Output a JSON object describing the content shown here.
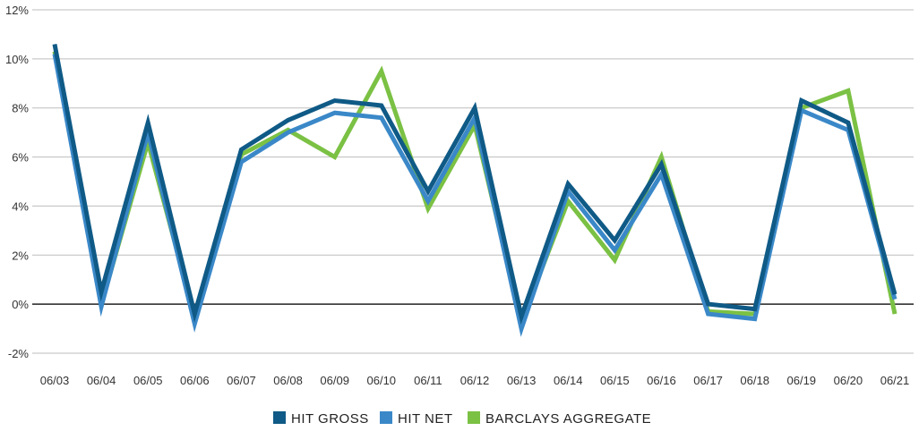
{
  "chart_data": {
    "type": "line",
    "title": "",
    "xlabel": "",
    "ylabel": "",
    "categories": [
      "06/03",
      "06/04",
      "06/05",
      "06/06",
      "06/07",
      "06/08",
      "06/09",
      "06/10",
      "06/11",
      "06/12",
      "06/13",
      "06/14",
      "06/15",
      "06/16",
      "06/17",
      "06/18",
      "06/19",
      "06/20",
      "06/21"
    ],
    "y_ticks": [
      "-2%",
      "0%",
      "2%",
      "4%",
      "6%",
      "8%",
      "10%",
      "12%"
    ],
    "ylim": [
      -2,
      12
    ],
    "grid": true,
    "legend_position": "bottom-center",
    "series": [
      {
        "name": "BARCLAYS AGGREGATE",
        "color": "#7bc144",
        "values": [
          10.3,
          0.0,
          6.6,
          -0.5,
          6.1,
          7.1,
          6.0,
          9.5,
          3.9,
          7.3,
          -0.7,
          4.2,
          1.8,
          6.0,
          -0.3,
          -0.4,
          8.0,
          8.7,
          -0.4
        ]
      },
      {
        "name": "HIT NET",
        "color": "#3a88c8",
        "values": [
          10.2,
          -0.1,
          7.0,
          -0.8,
          5.8,
          7.0,
          7.8,
          7.6,
          4.2,
          7.6,
          -1.0,
          4.6,
          2.2,
          5.3,
          -0.4,
          -0.6,
          7.9,
          7.1,
          0.2
        ]
      },
      {
        "name": "HIT GROSS",
        "color": "#0f5a86",
        "values": [
          10.6,
          0.5,
          7.4,
          -0.4,
          6.3,
          7.5,
          8.3,
          8.1,
          4.6,
          8.0,
          -0.5,
          4.9,
          2.6,
          5.7,
          0.0,
          -0.2,
          8.3,
          7.4,
          0.4
        ]
      }
    ],
    "legend": [
      {
        "name": "HIT GROSS",
        "color": "#0f5a86"
      },
      {
        "name": "HIT NET",
        "color": "#3a88c8"
      },
      {
        "name": "BARCLAYS AGGREGATE",
        "color": "#7bc144"
      }
    ]
  }
}
